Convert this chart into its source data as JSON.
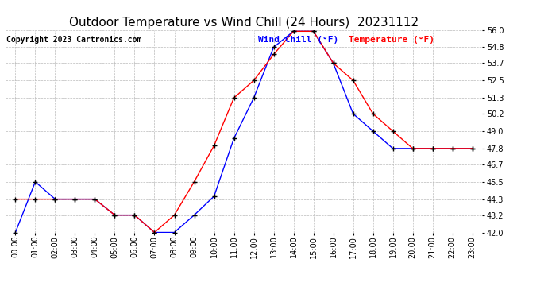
{
  "title": "Outdoor Temperature vs Wind Chill (24 Hours)  20231112",
  "copyright": "Copyright 2023 Cartronics.com",
  "legend_wind_chill": "Wind Chill (°F)",
  "legend_temperature": "Temperature (°F)",
  "hours": [
    0,
    1,
    2,
    3,
    4,
    5,
    6,
    7,
    8,
    9,
    10,
    11,
    12,
    13,
    14,
    15,
    16,
    17,
    18,
    19,
    20,
    21,
    22,
    23
  ],
  "temperature": [
    44.3,
    44.3,
    44.3,
    44.3,
    44.3,
    43.2,
    43.2,
    42.0,
    43.2,
    45.5,
    48.0,
    51.3,
    52.5,
    54.3,
    55.9,
    55.9,
    53.7,
    52.5,
    50.2,
    49.0,
    47.8,
    47.8,
    47.8,
    47.8
  ],
  "wind_chill": [
    42.0,
    45.5,
    44.3,
    44.3,
    44.3,
    43.2,
    43.2,
    42.0,
    42.0,
    43.2,
    44.5,
    48.5,
    51.3,
    54.8,
    55.9,
    55.9,
    53.7,
    50.2,
    49.0,
    47.8,
    47.8,
    47.8,
    47.8,
    47.8
  ],
  "ylim_min": 42.0,
  "ylim_max": 56.0,
  "yticks": [
    42.0,
    43.2,
    44.3,
    45.5,
    46.7,
    47.8,
    49.0,
    50.2,
    51.3,
    52.5,
    53.7,
    54.8,
    56.0
  ],
  "wind_chill_color": "blue",
  "temperature_color": "red",
  "marker": "+",
  "marker_color": "black",
  "background_color": "#ffffff",
  "grid_color": "#bbbbbb",
  "title_fontsize": 11,
  "axis_fontsize": 7,
  "copyright_fontsize": 7,
  "legend_fontsize": 8
}
